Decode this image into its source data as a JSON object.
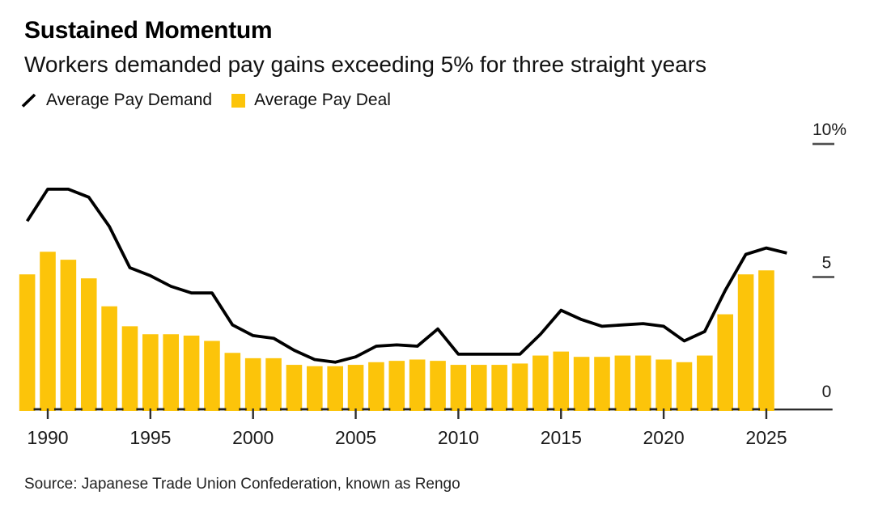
{
  "header": {
    "title": "Sustained Momentum",
    "subtitle": "Workers demanded pay gains exceeding 5% for three straight years"
  },
  "legend": {
    "items": [
      {
        "label": "Average Pay Demand",
        "swatch": "line"
      },
      {
        "label": "Average Pay Deal",
        "swatch": "square"
      }
    ]
  },
  "source_note": "Source: Japanese Trade Union Confederation, known as Rengo",
  "colors": {
    "bar": "#FCC40A",
    "line": "#000000",
    "axis_text": "#1A1A1A",
    "tick_dash": "#4D4D4D",
    "baseline": "#222222"
  },
  "chart_data": {
    "type": "combo-line-bar",
    "title": "Sustained Momentum",
    "subtitle": "Workers demanded pay gains exceeding 5% for three straight years",
    "unit": "%",
    "grid": false,
    "legend_position": "top-left",
    "xlim": [
      1988.3,
      2027.2
    ],
    "ylim": [
      0,
      10.6
    ],
    "x_tick_labels": [
      "1990",
      "1995",
      "2000",
      "2005",
      "2010",
      "2015",
      "2020",
      "2025"
    ],
    "x_tick_years": [
      1990,
      1995,
      2000,
      2005,
      2010,
      2015,
      2020,
      2025
    ],
    "y_ticks": [
      {
        "value": 0,
        "label": "0"
      },
      {
        "value": 5,
        "label": "5"
      },
      {
        "value": 10,
        "label": "10%"
      }
    ],
    "series": [
      {
        "name": "Average Pay Demand",
        "type": "line",
        "color": "#000000",
        "years": [
          1989,
          1990,
          1991,
          1992,
          1993,
          1994,
          1995,
          1996,
          1997,
          1998,
          1999,
          2000,
          2001,
          2002,
          2003,
          2004,
          2005,
          2006,
          2007,
          2008,
          2009,
          2010,
          2011,
          2012,
          2013,
          2014,
          2015,
          2016,
          2017,
          2018,
          2019,
          2020,
          2021,
          2022,
          2023,
          2024,
          2025,
          2026
        ],
        "values": [
          7.1,
          8.3,
          8.3,
          8.0,
          6.9,
          5.35,
          5.05,
          4.65,
          4.4,
          4.4,
          3.2,
          2.8,
          2.7,
          2.25,
          1.9,
          1.8,
          2.0,
          2.4,
          2.45,
          2.4,
          3.05,
          2.1,
          2.1,
          2.1,
          2.1,
          2.85,
          3.75,
          3.4,
          3.15,
          3.2,
          3.25,
          3.15,
          2.6,
          2.95,
          4.5,
          5.85,
          6.09,
          5.9
        ]
      },
      {
        "name": "Average Pay Deal",
        "type": "bar",
        "color": "#FCC40A",
        "years": [
          1989,
          1990,
          1991,
          1992,
          1993,
          1994,
          1995,
          1996,
          1997,
          1998,
          1999,
          2000,
          2001,
          2002,
          2003,
          2004,
          2005,
          2006,
          2007,
          2008,
          2009,
          2010,
          2011,
          2012,
          2013,
          2014,
          2015,
          2016,
          2017,
          2018,
          2019,
          2020,
          2021,
          2022,
          2023,
          2024,
          2025
        ],
        "values": [
          5.1,
          5.95,
          5.65,
          4.95,
          3.9,
          3.15,
          2.85,
          2.85,
          2.8,
          2.6,
          2.15,
          1.95,
          1.95,
          1.7,
          1.65,
          1.65,
          1.7,
          1.8,
          1.85,
          1.9,
          1.85,
          1.7,
          1.7,
          1.7,
          1.75,
          2.05,
          2.2,
          2.0,
          2.0,
          2.05,
          2.05,
          1.9,
          1.8,
          2.05,
          3.6,
          5.1,
          5.25
        ]
      }
    ]
  }
}
